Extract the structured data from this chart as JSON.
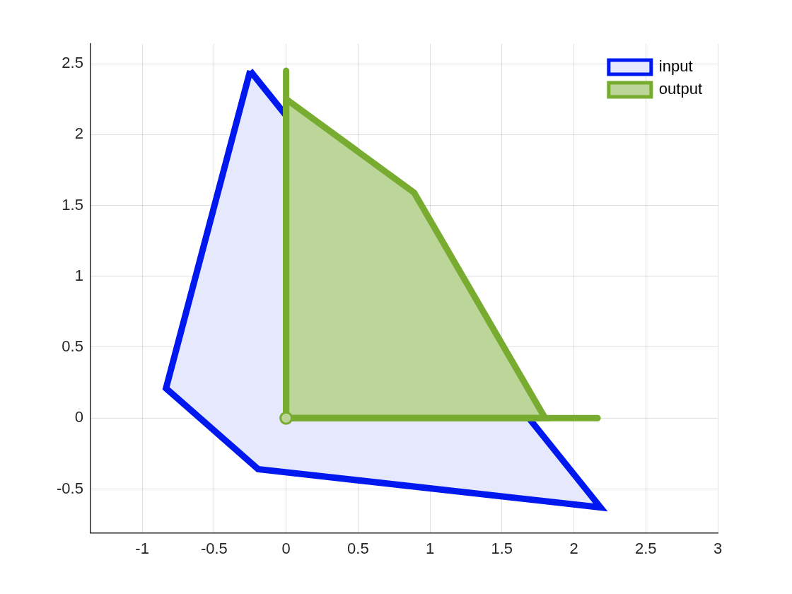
{
  "chart_data": {
    "type": "area",
    "xlim": [
      -1.36,
      3
    ],
    "ylim": [
      -0.81,
      2.64
    ],
    "xticks": [
      -1,
      -0.5,
      0,
      0.5,
      1,
      1.5,
      2,
      2.5,
      3
    ],
    "yticks": [
      -0.5,
      0,
      0.5,
      1,
      1.5,
      2,
      2.5
    ],
    "grid": true,
    "legend": "top right",
    "series": [
      {
        "name": "input",
        "color": "#0018f0",
        "x": [
          -0.25,
          -0.835,
          -0.195,
          2.185,
          -0.25
        ],
        "values": [
          2.45,
          0.21,
          -0.36,
          -0.63,
          2.45
        ]
      },
      {
        "name": "output",
        "color": "#77ac30",
        "x": [
          0,
          0.89,
          1.8,
          0,
          0
        ],
        "values": [
          2.25,
          1.59,
          0,
          0,
          2.25
        ]
      },
      {
        "type": "line",
        "color": "#77ac30",
        "x": [
          0,
          0,
          2.165
        ],
        "values": [
          2.45,
          0,
          0
        ]
      },
      {
        "type": "scatter",
        "color": "#77ac30",
        "marker": "circle",
        "x": [
          0
        ],
        "values": [
          0
        ]
      }
    ]
  }
}
